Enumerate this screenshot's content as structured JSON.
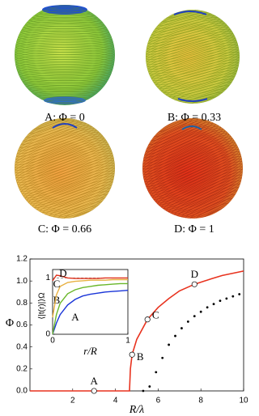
{
  "panels": [
    {
      "caption": "A:  Φ = 0"
    },
    {
      "caption": "B:  Φ = 0.33"
    },
    {
      "caption": "C:  Φ = 0.66"
    },
    {
      "caption": "D:  Φ = 1"
    }
  ],
  "chart_data": [
    {
      "type": "line",
      "xlabel": "R/λ",
      "ylabel": "Φ",
      "xlim": [
        0,
        10
      ],
      "ylim": [
        0,
        1.2
      ],
      "xticks": [
        2,
        4,
        6,
        8,
        10
      ],
      "yticks": [
        {
          "value": 0,
          "label": "0.0"
        },
        {
          "value": 0.2,
          "label": "0.2"
        },
        {
          "value": 0.4,
          "label": "0.4"
        },
        {
          "value": 0.6,
          "label": "0.6"
        },
        {
          "value": 0.8,
          "label": "0.8"
        },
        {
          "value": 1.0,
          "label": "1.0"
        },
        {
          "value": 1.2,
          "label": "1.2"
        }
      ],
      "series": [
        {
          "color": "#e8321e",
          "style": "line",
          "x": [
            0,
            4.66,
            4.7,
            4.78,
            5.0,
            5.5,
            6.0,
            6.5,
            7.0,
            7.7,
            8.5,
            9.0,
            10
          ],
          "values": [
            0,
            0,
            0.2,
            0.33,
            0.47,
            0.65,
            0.76,
            0.84,
            0.91,
            0.97,
            1.02,
            1.05,
            1.09
          ]
        },
        {
          "color": "#000000",
          "style": "dots",
          "x": [
            5.3,
            5.6,
            5.9,
            6.2,
            6.5,
            6.8,
            7.1,
            7.4,
            7.7,
            8.0,
            8.3,
            8.6,
            8.9,
            9.2,
            9.5,
            9.8
          ],
          "values": [
            0,
            0.04,
            0.17,
            0.3,
            0.42,
            0.5,
            0.57,
            0.63,
            0.68,
            0.72,
            0.76,
            0.79,
            0.82,
            0.84,
            0.86,
            0.88
          ]
        }
      ],
      "annotations": [
        {
          "label": "A",
          "x": 3,
          "y": 0
        },
        {
          "label": "B",
          "x": 4.78,
          "y": 0.33
        },
        {
          "label": "C",
          "x": 5.5,
          "y": 0.65
        },
        {
          "label": "D",
          "x": 7.7,
          "y": 0.97
        }
      ]
    },
    {
      "type": "line",
      "xlabel": "r/R",
      "ylabel": "⟨|t(r)|⟩Ω",
      "xlim": [
        0,
        1
      ],
      "ylim": [
        0,
        1.15
      ],
      "xticks": [
        0,
        1
      ],
      "yticks": [
        0,
        1
      ],
      "reference": 1,
      "series": [
        {
          "name": "A",
          "color": "#1a35d8",
          "x": [
            0,
            0.05,
            0.1,
            0.2,
            0.3,
            0.4,
            0.5,
            0.6,
            0.7,
            0.8,
            0.9,
            1
          ],
          "values": [
            0,
            0.2,
            0.35,
            0.52,
            0.62,
            0.68,
            0.71,
            0.73,
            0.75,
            0.76,
            0.77,
            0.78
          ]
        },
        {
          "name": "B",
          "color": "#6ab72a",
          "x": [
            0,
            0.05,
            0.1,
            0.2,
            0.3,
            0.4,
            0.5,
            0.6,
            0.7,
            0.8,
            0.9,
            1
          ],
          "values": [
            0,
            0.35,
            0.55,
            0.72,
            0.79,
            0.83,
            0.85,
            0.87,
            0.88,
            0.89,
            0.9,
            0.9
          ]
        },
        {
          "name": "C",
          "color": "#e8b040",
          "x": [
            0,
            0.05,
            0.1,
            0.2,
            0.3,
            0.4,
            0.5,
            0.6,
            0.7,
            0.8,
            0.9,
            1
          ],
          "values": [
            0.3,
            0.7,
            0.85,
            0.92,
            0.94,
            0.95,
            0.96,
            0.96,
            0.96,
            0.97,
            0.97,
            0.97
          ]
        },
        {
          "name": "D",
          "color": "#e0301a",
          "x": [
            0,
            0.05,
            0.1,
            0.2,
            0.3,
            0.4,
            0.5,
            0.6,
            0.7,
            0.8,
            0.9,
            1
          ],
          "values": [
            0.95,
            1.05,
            1.04,
            1.0,
            0.99,
            0.99,
            0.99,
            0.99,
            1.0,
            1.0,
            1.0,
            1.0
          ]
        }
      ]
    }
  ]
}
